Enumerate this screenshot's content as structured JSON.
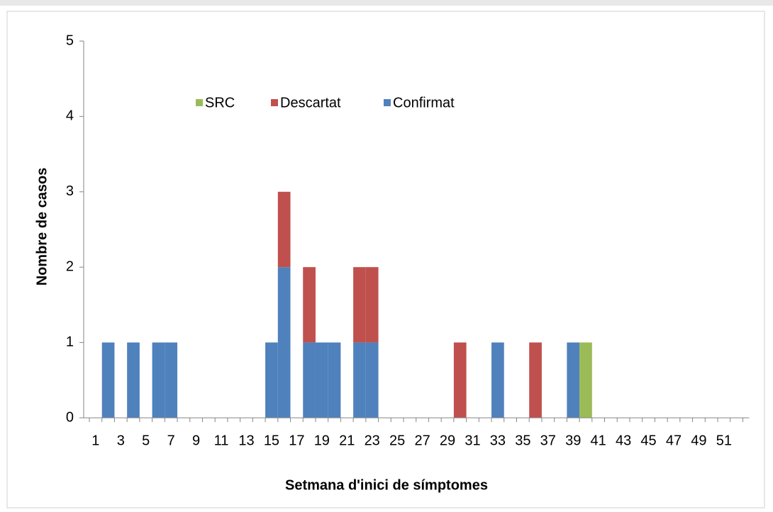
{
  "chart_data": {
    "type": "stacked_bar",
    "xlabel": "Setmana d'inici de símptomes",
    "ylabel": "Nombre de casos",
    "categories": [
      "1",
      null,
      "3",
      null,
      "5",
      null,
      "7",
      null,
      "9",
      null,
      "11",
      null,
      "13",
      null,
      "15",
      null,
      "17",
      null,
      "19",
      null,
      "21",
      null,
      "23",
      null,
      "25",
      null,
      "27",
      null,
      "29",
      null,
      "31",
      null,
      "33",
      null,
      "35",
      null,
      "37",
      null,
      "39",
      null,
      "41",
      null,
      "43",
      null,
      "45",
      null,
      "47",
      null,
      "49",
      null,
      "51",
      null
    ],
    "series": [
      {
        "name": "Confirmat",
        "color": "#4f81bd",
        "values": [
          0,
          1,
          0,
          1,
          0,
          1,
          1,
          0,
          0,
          0,
          0,
          0,
          0,
          0,
          1,
          2,
          0,
          1,
          1,
          1,
          0,
          1,
          1,
          0,
          0,
          0,
          0,
          0,
          0,
          0,
          0,
          0,
          1,
          0,
          0,
          0,
          0,
          0,
          1,
          0,
          0,
          0,
          0,
          0,
          0,
          0,
          0,
          0,
          0,
          0,
          0,
          0
        ]
      },
      {
        "name": "Descartat",
        "color": "#c0504d",
        "values": [
          0,
          0,
          0,
          0,
          0,
          0,
          0,
          0,
          0,
          0,
          0,
          0,
          0,
          0,
          0,
          1,
          0,
          1,
          0,
          0,
          0,
          1,
          1,
          0,
          0,
          0,
          0,
          0,
          0,
          1,
          0,
          0,
          0,
          0,
          0,
          1,
          0,
          0,
          0,
          0,
          0,
          0,
          0,
          0,
          0,
          0,
          0,
          0,
          0,
          0,
          0,
          0
        ]
      },
      {
        "name": "SRC",
        "color": "#9bbb59",
        "values": [
          0,
          0,
          0,
          0,
          0,
          0,
          0,
          0,
          0,
          0,
          0,
          0,
          0,
          0,
          0,
          0,
          0,
          0,
          0,
          0,
          0,
          0,
          0,
          0,
          0,
          0,
          0,
          0,
          0,
          0,
          0,
          0,
          0,
          0,
          0,
          0,
          0,
          0,
          0,
          1,
          0,
          0,
          0,
          0,
          0,
          0,
          0,
          0,
          0,
          0,
          0,
          0
        ]
      }
    ],
    "ylim": [
      0,
      5
    ],
    "yticks": [
      0,
      1,
      2,
      3,
      4,
      5
    ],
    "grid": false,
    "legend": "top"
  }
}
